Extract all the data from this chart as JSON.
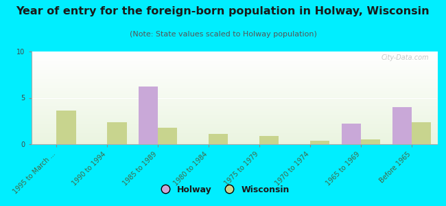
{
  "title": "Year of entry for the foreign-born population in Holway, Wisconsin",
  "subtitle": "(Note: State values scaled to Holway population)",
  "categories": [
    "1995 to March ...",
    "1990 to 1994",
    "1985 to 1989",
    "1980 to 1984",
    "1975 to 1979",
    "1970 to 1974",
    "1965 to 1969",
    "Before 1965"
  ],
  "holway_values": [
    0,
    0,
    6.2,
    0,
    0,
    0,
    2.2,
    4.0
  ],
  "wisconsin_values": [
    3.6,
    2.4,
    1.8,
    1.1,
    0.9,
    0.4,
    0.5,
    2.4
  ],
  "holway_color": "#c9a8d8",
  "wisconsin_color": "#c8d48e",
  "background_color": "#00eeff",
  "ylim": [
    0,
    10
  ],
  "yticks": [
    0,
    5,
    10
  ],
  "bar_width": 0.38,
  "title_fontsize": 11.5,
  "subtitle_fontsize": 8,
  "tick_fontsize": 7,
  "legend_fontsize": 9,
  "watermark": "City-Data.com"
}
